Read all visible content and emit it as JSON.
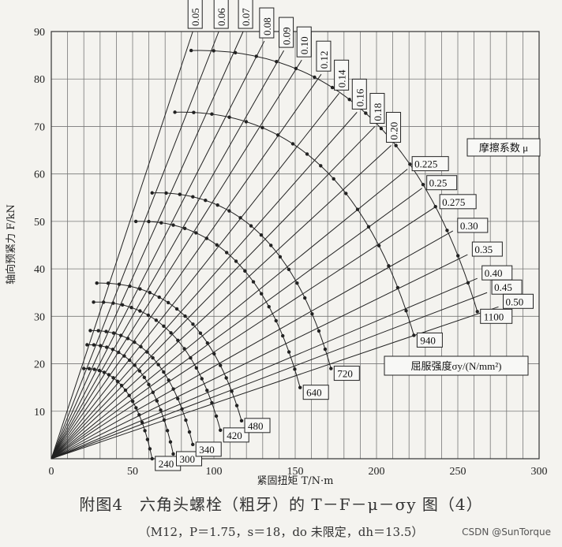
{
  "chart_data": {
    "type": "line",
    "title": "附图4　六角头螺栓（粗牙）的 T－F－μ－σy 图（4）",
    "subtitle": "（M12，P＝1.75，s＝18，do 未限定，dh＝13.5）",
    "xlabel": "紧固扭矩 T/N·m",
    "ylabel": "轴向预紧力 F/kN",
    "xlim": [
      0,
      300
    ],
    "ylim": [
      0,
      90
    ],
    "x_ticks": [
      0,
      50,
      100,
      150,
      200,
      250,
      300
    ],
    "y_ticks": [
      10,
      20,
      30,
      40,
      50,
      60,
      70,
      80,
      90
    ],
    "grid": true,
    "friction_label": "摩擦系数 μ",
    "friction_lines": [
      {
        "mu": "0.05",
        "end": [
          87,
          90
        ]
      },
      {
        "mu": "0.06",
        "end": [
          103,
          90
        ]
      },
      {
        "mu": "0.07",
        "end": [
          118,
          90
        ]
      },
      {
        "mu": "0.08",
        "end": [
          131,
          88
        ]
      },
      {
        "mu": "0.09",
        "end": [
          143,
          86
        ]
      },
      {
        "mu": "0.10",
        "end": [
          154,
          84
        ]
      },
      {
        "mu": "0.12",
        "end": [
          166,
          81
        ]
      },
      {
        "mu": "0.14",
        "end": [
          177,
          77
        ]
      },
      {
        "mu": "0.16",
        "end": [
          188,
          73
        ]
      },
      {
        "mu": "0.18",
        "end": [
          199,
          70
        ]
      },
      {
        "mu": "0.20",
        "end": [
          209,
          66
        ]
      },
      {
        "mu": "0.225",
        "end": [
          219,
          61
        ]
      },
      {
        "mu": "0.25",
        "end": [
          228,
          57
        ]
      },
      {
        "mu": "0.275",
        "end": [
          236,
          53
        ]
      },
      {
        "mu": "0.30",
        "end": [
          247,
          48
        ]
      },
      {
        "mu": "0.35",
        "end": [
          256,
          43
        ]
      },
      {
        "mu": "0.40",
        "end": [
          262,
          38
        ]
      },
      {
        "mu": "0.45",
        "end": [
          268,
          35
        ]
      },
      {
        "mu": "0.50",
        "end": [
          275,
          32
        ]
      }
    ],
    "yield_label": "屈服强度σy/(N/mm²)",
    "yield_stress_labels": [
      "240",
      "300",
      "340",
      "420",
      "480",
      "640",
      "720",
      "940",
      "1100"
    ],
    "yield_curves": [
      {
        "sigma": "240",
        "intercept": [
          62,
          0
        ],
        "start": [
          20,
          19
        ]
      },
      {
        "sigma": "300",
        "intercept": [
          75,
          1
        ],
        "start": [
          22,
          24
        ]
      },
      {
        "sigma": "340",
        "intercept": [
          87,
          3
        ],
        "start": [
          24,
          27
        ]
      },
      {
        "sigma": "420",
        "intercept": [
          104,
          6
        ],
        "start": [
          26,
          33
        ]
      },
      {
        "sigma": "480",
        "intercept": [
          117,
          8
        ],
        "start": [
          28,
          37
        ]
      },
      {
        "sigma": "640",
        "intercept": [
          153,
          15
        ],
        "start": [
          52,
          50
        ]
      },
      {
        "sigma": "720",
        "intercept": [
          172,
          19
        ],
        "start": [
          62,
          56
        ]
      },
      {
        "sigma": "940",
        "intercept": [
          223,
          26
        ],
        "start": [
          76,
          73
        ]
      },
      {
        "sigma": "1100",
        "intercept": [
          262,
          31
        ],
        "start": [
          86,
          86
        ]
      }
    ]
  },
  "watermark": "CSDN @SunTorque"
}
